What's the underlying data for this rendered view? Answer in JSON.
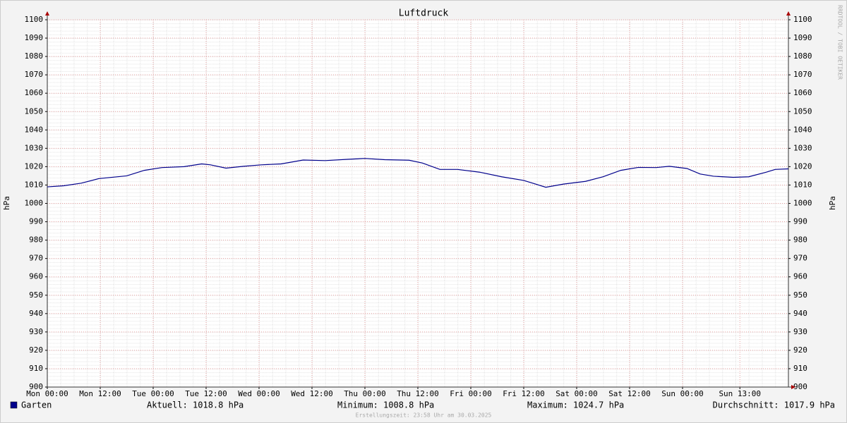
{
  "chart_data": {
    "type": "line",
    "title": "Luftdruck",
    "y_label": "hPa",
    "watermark": "RRDTOOL / TOBI OETIKER",
    "footer": "Erstellungszeit: 23:58 Uhr am 30.03.2025",
    "x": [
      0,
      3.7,
      7.7,
      11.7,
      18,
      22,
      26,
      31,
      35,
      37,
      40.5,
      44.5,
      48.5,
      53,
      58,
      63,
      68,
      72,
      76.5,
      82,
      85,
      89,
      93,
      98,
      103,
      108,
      113,
      117,
      122,
      126,
      130,
      134,
      138,
      141,
      145,
      148,
      151,
      155.5,
      159,
      163,
      165,
      168
    ],
    "series": [
      {
        "name": "Garten",
        "color": "#00008b",
        "values": [
          1009,
          1009.6,
          1011,
          1013.5,
          1015,
          1018,
          1019.5,
          1020,
          1021.5,
          1021,
          1019.2,
          1020.2,
          1021,
          1021.5,
          1023.6,
          1023.3,
          1024,
          1024.5,
          1023.8,
          1023.5,
          1022,
          1018.5,
          1018.5,
          1017,
          1014.5,
          1012.5,
          1008.8,
          1010.5,
          1012,
          1014.5,
          1018,
          1019.6,
          1019.5,
          1020.2,
          1019,
          1016,
          1014.8,
          1014.2,
          1014.5,
          1017,
          1018.5,
          1018.8
        ]
      }
    ],
    "xlim": [
      0,
      168
    ],
    "xticks": [
      {
        "value": 0,
        "label": "Mon 00:00"
      },
      {
        "value": 12,
        "label": "Mon 12:00"
      },
      {
        "value": 24,
        "label": "Tue 00:00"
      },
      {
        "value": 36,
        "label": "Tue 12:00"
      },
      {
        "value": 48,
        "label": "Wed 00:00"
      },
      {
        "value": 60,
        "label": "Wed 12:00"
      },
      {
        "value": 72,
        "label": "Thu 00:00"
      },
      {
        "value": 84,
        "label": "Thu 12:00"
      },
      {
        "value": 96,
        "label": "Fri 00:00"
      },
      {
        "value": 108,
        "label": "Fri 12:00"
      },
      {
        "value": 120,
        "label": "Sat 00:00"
      },
      {
        "value": 132,
        "label": "Sat 12:00"
      },
      {
        "value": 144,
        "label": "Sun 00:00"
      },
      {
        "value": 157,
        "label": "Sun 13:00"
      }
    ],
    "ylim": [
      900,
      1100
    ],
    "yticks": [
      900,
      910,
      920,
      930,
      940,
      950,
      960,
      970,
      980,
      990,
      1000,
      1010,
      1020,
      1030,
      1040,
      1050,
      1060,
      1070,
      1080,
      1090,
      1100
    ],
    "grid": true,
    "stats": [
      "Aktuell: 1018.8 hPa",
      "Minimum: 1008.8 hPa",
      "Maximum: 1024.7 hPa",
      "Durchschnitt: 1017.9 hPa"
    ]
  }
}
